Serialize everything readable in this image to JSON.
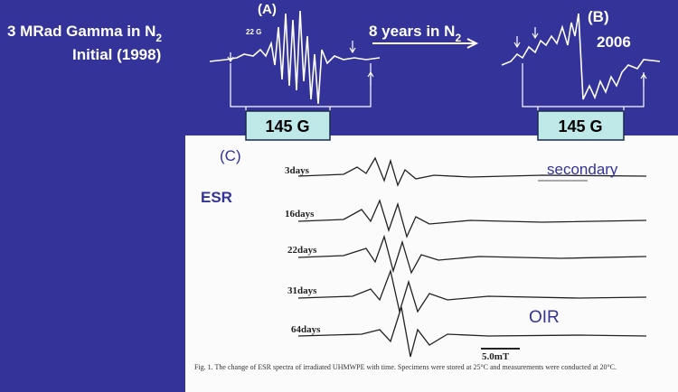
{
  "title_left": {
    "text": "3 MRad Gamma in N",
    "subscript": "2"
  },
  "initial": "Initial (1998)",
  "panel_a": {
    "label": "(A)",
    "scale": "22 G",
    "box": "145 G"
  },
  "arrow_text": {
    "text": "8 years in N",
    "subscript": "2"
  },
  "panel_b": {
    "label": "(B)",
    "year": "2006",
    "box": "145 G"
  },
  "panel_c": {
    "label": "(C)",
    "method": "ESR",
    "secondary": "secondary",
    "oir": "OIR",
    "traces": [
      "3days",
      "16days",
      "22days",
      "31days",
      "64days"
    ],
    "scale_bar": "5.0mT",
    "caption": "Fig. 1. The change of ESR spectra of irradiated UHMWPE with time. Specimens were stored at 25°C and measurements were conducted at 20°C."
  }
}
